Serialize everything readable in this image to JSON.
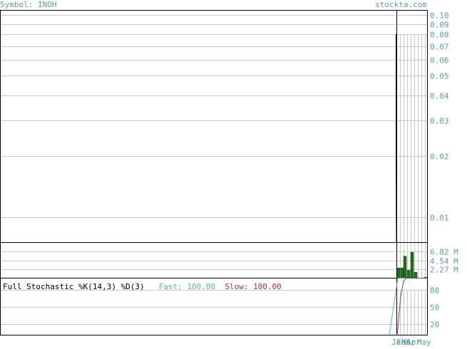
{
  "header": {
    "symbol_text": "Symbol: INOH",
    "site_text": "stockta.com"
  },
  "stochastic": {
    "title": "Full Stochastic %K(14,3) %D(3)",
    "fast_label": "Fast:",
    "fast_value": "100.00",
    "slow_label": "Slow:",
    "slow_value": "100.00"
  },
  "colors": {
    "grid": "#c8c8c8",
    "axis_text": "#5e9e9e",
    "price_line": "#000000",
    "volume_bar": "#1e6e1e",
    "fast_line": "#5eb0b0",
    "slow_line": "#a03060"
  },
  "chart_data": [
    {
      "type": "line",
      "panel": "price",
      "scale": "log",
      "ylim": [
        0.0075,
        0.105
      ],
      "y_ticks": [
        0.1,
        0.09,
        0.08,
        0.07,
        0.06,
        0.05,
        0.04,
        0.03,
        0.02,
        0.01
      ],
      "y_tick_labels": [
        "0.10",
        "0.09",
        "0.08",
        "0.07",
        "0.06",
        "0.05",
        "0.04",
        "0.03",
        "0.02",
        "0.01"
      ],
      "series": [
        {
          "values": [
            0.08,
            0.02,
            0.0075,
            0.0075,
            0.0075,
            0.0075,
            0.0075,
            0.0075,
            0.0075
          ]
        }
      ]
    },
    {
      "type": "bar",
      "panel": "volume",
      "ylim": [
        0,
        9.1
      ],
      "y_ticks": [
        6.82,
        4.54,
        2.27
      ],
      "y_tick_labels": [
        "6.82 M",
        "4.54 M",
        "2.27 M"
      ],
      "series": [
        {
          "values": [
            2.6,
            2.6,
            5.6,
            2.0,
            6.6,
            1.5,
            0.2
          ]
        }
      ]
    },
    {
      "type": "line",
      "panel": "stochastic",
      "ylim": [
        0,
        100
      ],
      "y_ticks": [
        80,
        50,
        20
      ],
      "y_tick_labels": [
        "80",
        "50",
        "20"
      ],
      "series": [
        {
          "name": "Fast",
          "values": [
            0,
            100,
            100,
            100,
            100,
            100,
            100,
            100,
            100,
            100
          ]
        },
        {
          "name": "Slow",
          "values": [
            0,
            0,
            67,
            95,
            100,
            100,
            100,
            100,
            100,
            100
          ]
        }
      ]
    }
  ],
  "x_axis": {
    "labels": [
      "Jan",
      "Feb",
      "Mar",
      "Apr",
      "May"
    ]
  }
}
